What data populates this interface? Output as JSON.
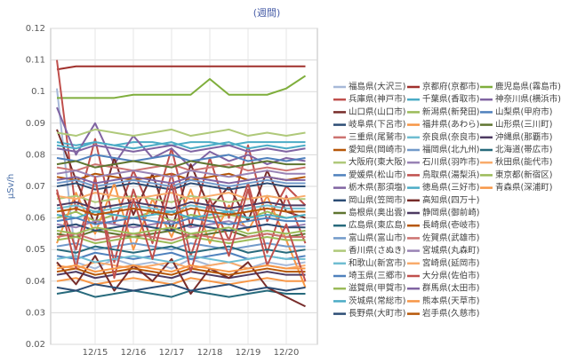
{
  "chart_data": {
    "type": "line",
    "title": "(週間)",
    "y_label": "μSv/h",
    "categories": [
      null,
      null,
      "12/15",
      null,
      "12/16",
      null,
      "12/17",
      null,
      "12/18",
      null,
      "12/19",
      null,
      "12/20",
      null
    ],
    "ylim": [
      0.02,
      0.12
    ],
    "yticks": [
      0.02,
      0.03,
      0.04,
      0.05,
      0.06,
      0.07,
      0.08,
      0.09,
      0.1,
      0.11,
      0.12
    ],
    "grid": true,
    "series": [
      {
        "name": "福島県(大沢三)",
        "color": "#a7b9d8",
        "values": [
          0.101,
          0.046,
          0.044,
          0.047,
          0.045,
          0.046,
          0.044,
          0.047,
          0.045,
          0.046,
          0.044,
          0.046,
          0.045,
          0.046
        ]
      },
      {
        "name": "京都府(京都市)",
        "color": "#a0302c",
        "values": [
          0.107,
          0.108,
          0.108,
          0.108,
          0.108,
          0.108,
          0.108,
          0.108,
          0.108,
          0.108,
          0.108,
          0.108,
          0.108,
          0.108
        ]
      },
      {
        "name": "鹿児島県(霧島市)",
        "color": "#7fae3c",
        "values": [
          0.098,
          0.098,
          0.098,
          0.098,
          0.099,
          0.099,
          0.099,
          0.099,
          0.104,
          0.099,
          0.099,
          0.099,
          0.101,
          0.105
        ]
      },
      {
        "name": "兵庫県(神戸市)",
        "color": "#c0504d",
        "values": [
          0.11,
          0.062,
          0.085,
          0.058,
          0.075,
          0.061,
          0.082,
          0.057,
          0.079,
          0.06,
          0.083,
          0.059,
          0.07,
          0.064
        ]
      },
      {
        "name": "千葉県(香取市)",
        "color": "#4bacc6",
        "values": [
          0.084,
          0.083,
          0.084,
          0.083,
          0.084,
          0.084,
          0.083,
          0.084,
          0.084,
          0.083,
          0.084,
          0.084,
          0.084,
          0.084
        ]
      },
      {
        "name": "神奈川県(横浜市)",
        "color": "#8064a2",
        "values": [
          0.095,
          0.08,
          0.09,
          0.077,
          0.086,
          0.079,
          0.082,
          0.076,
          0.081,
          0.078,
          0.08,
          0.077,
          0.079,
          0.078
        ]
      },
      {
        "name": "山口県(山口市)",
        "color": "#772c2a",
        "values": [
          0.088,
          0.072,
          0.058,
          0.079,
          0.061,
          0.074,
          0.056,
          0.077,
          0.063,
          0.07,
          0.059,
          0.075,
          0.062,
          0.06
        ]
      },
      {
        "name": "新潟県(新発田)",
        "color": "#9bbb59",
        "values": [
          0.06,
          0.062,
          0.059,
          0.061,
          0.06,
          0.062,
          0.059,
          0.061,
          0.06,
          0.061,
          0.06,
          0.062,
          0.06,
          0.061
        ]
      },
      {
        "name": "山梨県(甲府市)",
        "color": "#4f81bd",
        "values": [
          0.048,
          0.047,
          0.049,
          0.048,
          0.047,
          0.048,
          0.049,
          0.047,
          0.048,
          0.049,
          0.047,
          0.048,
          0.047,
          0.048
        ]
      },
      {
        "name": "岐阜県(下呂市)",
        "color": "#2c4d75",
        "values": [
          0.07,
          0.071,
          0.069,
          0.07,
          0.071,
          0.07,
          0.069,
          0.071,
          0.07,
          0.069,
          0.07,
          0.071,
          0.07,
          0.07
        ]
      },
      {
        "name": "福井県(あわら)",
        "color": "#f79646",
        "values": [
          0.052,
          0.068,
          0.055,
          0.071,
          0.05,
          0.066,
          0.054,
          0.069,
          0.052,
          0.064,
          0.056,
          0.067,
          0.053,
          0.038
        ]
      },
      {
        "name": "山形県(三川町)",
        "color": "#5f7530",
        "values": [
          0.055,
          0.054,
          0.056,
          0.055,
          0.054,
          0.055,
          0.056,
          0.054,
          0.055,
          0.056,
          0.054,
          0.055,
          0.054,
          0.055
        ]
      },
      {
        "name": "三重県(尾鷲市)",
        "color": "#cd7371",
        "values": [
          0.076,
          0.075,
          0.077,
          0.076,
          0.075,
          0.076,
          0.077,
          0.075,
          0.076,
          0.077,
          0.075,
          0.076,
          0.075,
          0.076
        ]
      },
      {
        "name": "奈良県(奈良市)",
        "color": "#6fbdd1",
        "values": [
          0.063,
          0.064,
          0.062,
          0.063,
          0.064,
          0.063,
          0.062,
          0.064,
          0.063,
          0.062,
          0.063,
          0.064,
          0.063,
          0.063
        ]
      },
      {
        "name": "沖縄県(那覇市)",
        "color": "#4d3b62",
        "values": [
          0.042,
          0.043,
          0.041,
          0.042,
          0.043,
          0.042,
          0.041,
          0.043,
          0.042,
          0.041,
          0.042,
          0.043,
          0.042,
          0.042
        ]
      },
      {
        "name": "愛知県(岡崎市)",
        "color": "#b65708",
        "values": [
          0.073,
          0.072,
          0.074,
          0.073,
          0.072,
          0.073,
          0.074,
          0.072,
          0.073,
          0.074,
          0.072,
          0.073,
          0.072,
          0.073
        ]
      },
      {
        "name": "福岡県(北九州)",
        "color": "#729aca",
        "values": [
          0.051,
          0.052,
          0.05,
          0.051,
          0.052,
          0.051,
          0.05,
          0.052,
          0.051,
          0.05,
          0.051,
          0.052,
          0.051,
          0.051
        ]
      },
      {
        "name": "北海道(帯広市)",
        "color": "#276a7c",
        "values": [
          0.036,
          0.037,
          0.035,
          0.036,
          0.037,
          0.036,
          0.035,
          0.037,
          0.036,
          0.035,
          0.036,
          0.037,
          0.036,
          0.036
        ]
      },
      {
        "name": "大阪府(東大阪)",
        "color": "#afc97a",
        "values": [
          0.066,
          0.067,
          0.065,
          0.066,
          0.067,
          0.066,
          0.065,
          0.067,
          0.066,
          0.065,
          0.066,
          0.067,
          0.066,
          0.066
        ]
      },
      {
        "name": "石川県(羽咋市)",
        "color": "#9983b5",
        "values": [
          0.058,
          0.057,
          0.059,
          0.058,
          0.057,
          0.058,
          0.059,
          0.057,
          0.058,
          0.059,
          0.057,
          0.058,
          0.057,
          0.058
        ]
      },
      {
        "name": "秋田県(能代市)",
        "color": "#f9ab6b",
        "values": [
          0.045,
          0.044,
          0.046,
          0.045,
          0.044,
          0.045,
          0.046,
          0.044,
          0.045,
          0.046,
          0.044,
          0.045,
          0.044,
          0.045
        ]
      },
      {
        "name": "愛媛県(松山市)",
        "color": "#4f81bd",
        "values": [
          0.079,
          0.078,
          0.08,
          0.079,
          0.078,
          0.079,
          0.08,
          0.078,
          0.079,
          0.08,
          0.078,
          0.079,
          0.078,
          0.079
        ]
      },
      {
        "name": "鳥取県(湯梨浜)",
        "color": "#c0504d",
        "values": [
          0.068,
          0.05,
          0.072,
          0.046,
          0.069,
          0.052,
          0.074,
          0.048,
          0.066,
          0.053,
          0.071,
          0.049,
          0.067,
          0.052
        ]
      },
      {
        "name": "東京都(新宿区)",
        "color": "#9bbb59",
        "values": [
          0.053,
          0.054,
          0.052,
          0.053,
          0.054,
          0.053,
          0.052,
          0.054,
          0.053,
          0.052,
          0.053,
          0.054,
          0.053,
          0.053
        ]
      },
      {
        "name": "栃木県(那須塩)",
        "color": "#8064a2",
        "values": [
          0.082,
          0.081,
          0.083,
          0.082,
          0.081,
          0.082,
          0.083,
          0.081,
          0.082,
          0.083,
          0.081,
          0.082,
          0.081,
          0.082
        ]
      },
      {
        "name": "徳島県(三好市)",
        "color": "#4bacc6",
        "values": [
          0.061,
          0.06,
          0.062,
          0.061,
          0.06,
          0.061,
          0.062,
          0.06,
          0.061,
          0.062,
          0.06,
          0.061,
          0.06,
          0.061
        ]
      },
      {
        "name": "青森県(深浦町)",
        "color": "#f79646",
        "values": [
          0.04,
          0.041,
          0.039,
          0.04,
          0.041,
          0.04,
          0.039,
          0.041,
          0.04,
          0.039,
          0.04,
          0.041,
          0.04,
          0.04
        ]
      },
      {
        "name": "岡山県(笠岡市)",
        "color": "#2c4d75",
        "values": [
          0.057,
          0.058,
          0.056,
          0.057,
          0.058,
          0.057,
          0.056,
          0.058,
          0.057,
          0.056,
          0.057,
          0.058,
          0.057,
          0.057
        ]
      },
      {
        "name": "高知県(四万十)",
        "color": "#772c2a",
        "values": [
          0.046,
          0.039,
          0.048,
          0.037,
          0.045,
          0.04,
          0.047,
          0.036,
          0.044,
          0.041,
          0.046,
          0.038,
          0.035,
          0.032
        ]
      },
      {
        "name": "島根県(奥出雲)",
        "color": "#5f7530",
        "values": [
          0.077,
          0.078,
          0.076,
          0.077,
          0.078,
          0.077,
          0.076,
          0.078,
          0.077,
          0.076,
          0.077,
          0.078,
          0.077,
          0.077
        ]
      },
      {
        "name": "静岡県(御前崎)",
        "color": "#4d3b62",
        "values": [
          0.064,
          0.065,
          0.063,
          0.064,
          0.065,
          0.064,
          0.063,
          0.065,
          0.064,
          0.063,
          0.064,
          0.065,
          0.064,
          0.064
        ]
      },
      {
        "name": "広島県(東広島)",
        "color": "#276a7c",
        "values": [
          0.05,
          0.049,
          0.051,
          0.05,
          0.049,
          0.05,
          0.051,
          0.049,
          0.05,
          0.051,
          0.049,
          0.05,
          0.049,
          0.05
        ]
      },
      {
        "name": "長崎県(壱岐市)",
        "color": "#b65708",
        "values": [
          0.043,
          0.044,
          0.042,
          0.043,
          0.044,
          0.043,
          0.042,
          0.044,
          0.043,
          0.042,
          0.043,
          0.044,
          0.043,
          0.043
        ]
      },
      {
        "name": "富山県(富山市)",
        "color": "#729aca",
        "values": [
          0.071,
          0.072,
          0.07,
          0.071,
          0.072,
          0.071,
          0.07,
          0.072,
          0.071,
          0.07,
          0.071,
          0.072,
          0.071,
          0.071
        ]
      },
      {
        "name": "佐賀県(武雄市)",
        "color": "#cd7371",
        "values": [
          0.054,
          0.055,
          0.053,
          0.054,
          0.055,
          0.054,
          0.053,
          0.055,
          0.054,
          0.053,
          0.054,
          0.055,
          0.054,
          0.054
        ]
      },
      {
        "name": "香川県(さぬき)",
        "color": "#afc97a",
        "values": [
          0.087,
          0.086,
          0.088,
          0.087,
          0.086,
          0.087,
          0.088,
          0.086,
          0.087,
          0.088,
          0.086,
          0.087,
          0.086,
          0.087
        ]
      },
      {
        "name": "宮城県(丸森町)",
        "color": "#9983b5",
        "values": [
          0.074,
          0.075,
          0.073,
          0.074,
          0.075,
          0.074,
          0.073,
          0.075,
          0.074,
          0.073,
          0.074,
          0.075,
          0.074,
          0.074
        ]
      },
      {
        "name": "和歌山(新宮市)",
        "color": "#6fbdd1",
        "values": [
          0.047,
          0.048,
          0.046,
          0.047,
          0.048,
          0.047,
          0.046,
          0.048,
          0.047,
          0.046,
          0.047,
          0.048,
          0.047,
          0.047
        ]
      },
      {
        "name": "宮崎県(延岡市)",
        "color": "#f9ab6b",
        "values": [
          0.067,
          0.066,
          0.068,
          0.067,
          0.066,
          0.067,
          0.068,
          0.066,
          0.067,
          0.068,
          0.066,
          0.067,
          0.066,
          0.067
        ]
      },
      {
        "name": "埼玉県(三郷市)",
        "color": "#4f81bd",
        "values": [
          0.059,
          0.06,
          0.058,
          0.059,
          0.06,
          0.059,
          0.058,
          0.06,
          0.059,
          0.058,
          0.059,
          0.06,
          0.059,
          0.059
        ]
      },
      {
        "name": "大分県(佐伯市)",
        "color": "#c0504d",
        "values": [
          0.069,
          0.044,
          0.073,
          0.041,
          0.066,
          0.047,
          0.071,
          0.043,
          0.064,
          0.048,
          0.069,
          0.045,
          0.058,
          0.04
        ]
      },
      {
        "name": "滋賀県(甲賀市)",
        "color": "#9bbb59",
        "values": [
          0.056,
          0.055,
          0.057,
          0.056,
          0.055,
          0.056,
          0.057,
          0.055,
          0.056,
          0.057,
          0.055,
          0.056,
          0.055,
          0.056
        ]
      },
      {
        "name": "群馬県(太田市)",
        "color": "#8064a2",
        "values": [
          0.072,
          0.073,
          0.071,
          0.072,
          0.073,
          0.072,
          0.071,
          0.073,
          0.072,
          0.071,
          0.072,
          0.073,
          0.072,
          0.072
        ]
      },
      {
        "name": "茨城県(常総市)",
        "color": "#4bacc6",
        "values": [
          0.083,
          0.082,
          0.084,
          0.083,
          0.082,
          0.083,
          0.084,
          0.082,
          0.083,
          0.084,
          0.082,
          0.083,
          0.082,
          0.083
        ]
      },
      {
        "name": "熊本県(天草市)",
        "color": "#f79646",
        "values": [
          0.044,
          0.045,
          0.043,
          0.044,
          0.045,
          0.044,
          0.043,
          0.045,
          0.044,
          0.043,
          0.044,
          0.045,
          0.044,
          0.044
        ]
      },
      {
        "name": "長野県(大町市)",
        "color": "#2c4d75",
        "values": [
          0.038,
          0.037,
          0.039,
          0.038,
          0.037,
          0.038,
          0.039,
          0.037,
          0.038,
          0.039,
          0.037,
          0.038,
          0.037,
          0.038
        ]
      },
      {
        "name": "岩手県(久慈市)",
        "color": "#b65708",
        "values": [
          0.062,
          0.063,
          0.061,
          0.062,
          0.063,
          0.062,
          0.061,
          0.063,
          0.062,
          0.061,
          0.062,
          0.063,
          0.062,
          0.062
        ]
      }
    ]
  }
}
